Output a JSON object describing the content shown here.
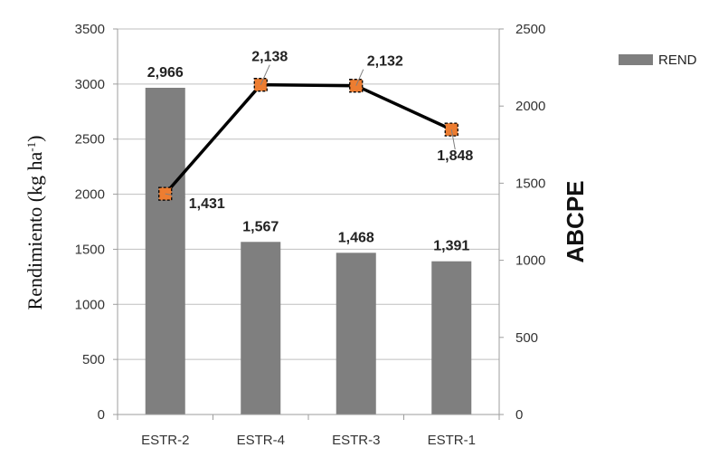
{
  "chart_data": {
    "type": "bar",
    "categories": [
      "ESTR-2",
      "ESTR-4",
      "ESTR-3",
      "ESTR-1"
    ],
    "series": [
      {
        "name": "REND",
        "kind": "bar",
        "axis": "left",
        "values": [
          2966,
          1567,
          1468,
          1391
        ],
        "labels": [
          "2,966",
          "1,567",
          "1,468",
          "1,391"
        ],
        "color": "#7f7f7f"
      },
      {
        "kind": "line",
        "axis": "right",
        "values": [
          1431,
          2138,
          2132,
          1848
        ],
        "labels": [
          "1,431",
          "2,138",
          "2,132",
          "1,848"
        ],
        "color": "#000000",
        "marker_color": "#ed7d31"
      }
    ],
    "y_left": {
      "label_main": "Rendimiento (kg ha",
      "label_sup": "-1",
      "label_close": ")",
      "ylim": [
        0,
        3500
      ],
      "ticks": [
        "0",
        "500",
        "1000",
        "1500",
        "2000",
        "2500",
        "3000",
        "3500"
      ]
    },
    "y_right": {
      "label": "ABCPE",
      "ylim": [
        0,
        2500
      ],
      "ticks": [
        "0",
        "500",
        "1000",
        "1500",
        "2000",
        "2500"
      ]
    },
    "grid": true,
    "legend_position": "top-right"
  }
}
